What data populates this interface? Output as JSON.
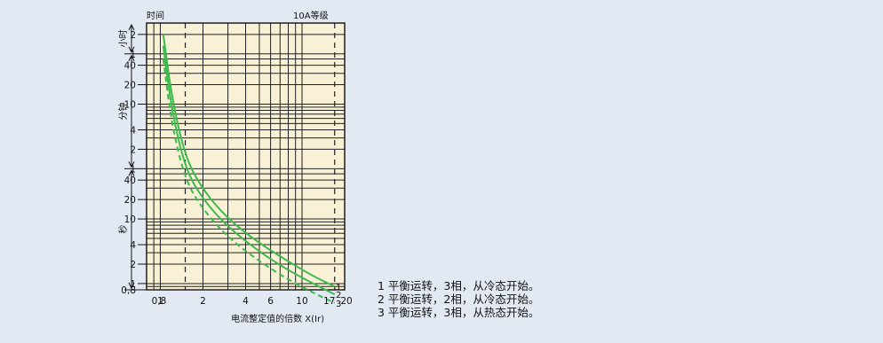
{
  "chart_data": {
    "type": "line",
    "title": "10A等级",
    "xlabel": "电流整定值的倍数 X(Ir)",
    "ylabel": "时间",
    "x_scale": "log",
    "y_scale": "log",
    "xlim": [
      0.8,
      20
    ],
    "ylim_seconds": [
      0.8,
      10800
    ],
    "grid": true,
    "x_ticks": [
      {
        "value": 0.8,
        "label": "0,8"
      },
      {
        "value": 1,
        "label": "1"
      },
      {
        "value": 2,
        "label": "2"
      },
      {
        "value": 4,
        "label": "4"
      },
      {
        "value": 6,
        "label": "6"
      },
      {
        "value": 10,
        "label": "10"
      },
      {
        "value": 17,
        "label": "17"
      },
      {
        "value": 20,
        "label": "20"
      }
    ],
    "y_ticks": [
      {
        "seconds": 7200,
        "label": "2"
      },
      {
        "seconds": 3600,
        "label": "1"
      },
      {
        "seconds": 2400,
        "label": "40"
      },
      {
        "seconds": 1200,
        "label": "20"
      },
      {
        "seconds": 600,
        "label": "10"
      },
      {
        "seconds": 240,
        "label": "4"
      },
      {
        "seconds": 120,
        "label": "2"
      },
      {
        "seconds": 60,
        "label": "1"
      },
      {
        "seconds": 40,
        "label": "40"
      },
      {
        "seconds": 20,
        "label": "20"
      },
      {
        "seconds": 10,
        "label": "10"
      },
      {
        "seconds": 4,
        "label": "4"
      },
      {
        "seconds": 2,
        "label": "2"
      },
      {
        "seconds": 1,
        "label": "1"
      },
      {
        "seconds": 0.8,
        "label": "0,8"
      }
    ],
    "y_unit_bands": [
      {
        "label": "小时",
        "from_seconds": 3600,
        "to_seconds": 10800
      },
      {
        "label": "分钟",
        "from_seconds": 60,
        "to_seconds": 3600
      },
      {
        "label": "秒",
        "from_seconds": 0.8,
        "to_seconds": 60
      }
    ],
    "reference_lines_x": [
      1.5,
      17
    ],
    "series": [
      {
        "name": "1",
        "dash": "solid",
        "color": "#3dba4e",
        "x": [
          1.05,
          1.2,
          1.5,
          2,
          3,
          5,
          8,
          12,
          17
        ],
        "y_seconds": [
          7200,
          800,
          90,
          28,
          10,
          4.2,
          2.2,
          1.3,
          0.9
        ]
      },
      {
        "name": "2",
        "dash": "solid",
        "color": "#3dba4e",
        "x": [
          1.05,
          1.2,
          1.5,
          2,
          3,
          5,
          8,
          12,
          17
        ],
        "y_seconds": [
          4800,
          500,
          60,
          20,
          7.5,
          3.1,
          1.6,
          1.0,
          0.68
        ]
      },
      {
        "name": "3",
        "dash": "dashed",
        "color": "#3dba4e",
        "x": [
          1.05,
          1.2,
          1.5,
          2,
          3,
          5,
          8,
          12,
          17
        ],
        "y_seconds": [
          3000,
          300,
          40,
          14,
          5.2,
          2.2,
          1.15,
          0.72,
          0.5
        ]
      }
    ],
    "curve_labels": [
      "1",
      "2",
      "3"
    ]
  },
  "legend": [
    "1 平衡运转，3相，从冷态开始。",
    "2 平衡运转，2相，从冷态开始。",
    "3 平衡运转，3相，从热态开始。"
  ],
  "colors": {
    "background": "#e2e9f3",
    "plot_fill": "#f8f1d5",
    "curve": "#3dba4e"
  }
}
